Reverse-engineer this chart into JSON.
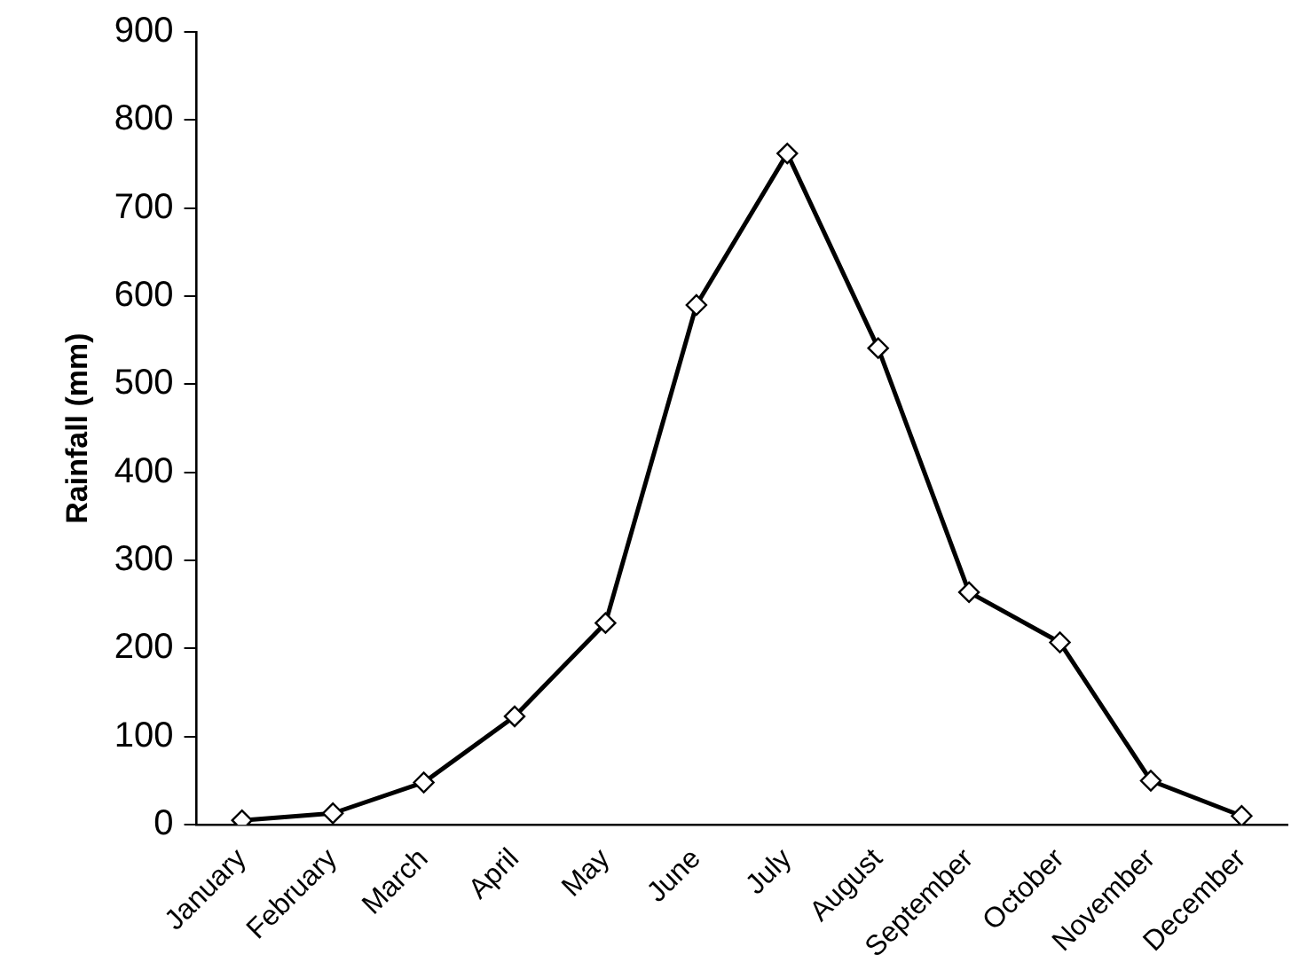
{
  "chart_data": {
    "type": "line",
    "ylabel": "Rainfall (mm)",
    "categories": [
      "January",
      "February",
      "March",
      "April",
      "May",
      "June",
      "July",
      "August",
      "September",
      "October",
      "November",
      "December"
    ],
    "series": [
      {
        "color": "#000000",
        "values": [
          5,
          13,
          48,
          123,
          229,
          590,
          762,
          541,
          264,
          207,
          50,
          10
        ]
      }
    ],
    "ylim": [
      0,
      900
    ],
    "yticks": [
      0,
      100,
      200,
      300,
      400,
      500,
      600,
      700,
      800,
      900
    ],
    "grid": false,
    "legend": false,
    "marker": "diamond",
    "line_style": "solid"
  }
}
